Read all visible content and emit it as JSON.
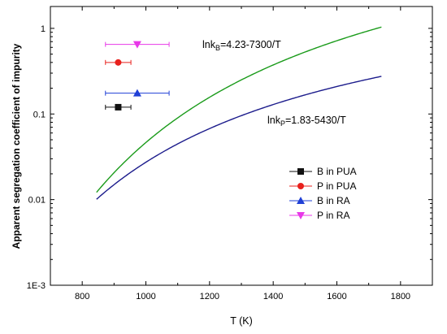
{
  "chart_data": {
    "type": "scatter",
    "title": "",
    "xlabel": "T (K)",
    "ylabel": "Apparent segregation coefficient of impurity",
    "xlim": [
      700,
      1900
    ],
    "ylim": [
      0.001,
      1.8
    ],
    "yscale": "log",
    "x_ticks": [
      "800",
      "1000",
      "1200",
      "1400",
      "1600",
      "1800"
    ],
    "y_ticks": [
      "1E-3",
      "0.01",
      "0.1",
      "1"
    ],
    "grid": false,
    "legend_position": "right",
    "curves": [
      {
        "name": "lnkB=4.23-7300/T",
        "color": "#1a9b1a",
        "a": 4.23,
        "b": 7300,
        "x_range": [
          845,
          1740
        ]
      },
      {
        "name": "lnkP=1.83-5430/T",
        "color": "#1c1c8c",
        "a": 1.83,
        "b": 5430,
        "x_range": [
          845,
          1740
        ]
      }
    ],
    "annotations": [
      {
        "main": "lnk",
        "sub": "B",
        "rest": "=4.23-7300/T"
      },
      {
        "main": "lnk",
        "sub": "P",
        "rest": "=1.83-5430/T"
      }
    ],
    "series": [
      {
        "name": "B in PUA",
        "marker": "square",
        "color": "#111111",
        "x": 913,
        "y": 0.12,
        "xerr": [
          873,
          953
        ]
      },
      {
        "name": "P in PUA",
        "marker": "circle",
        "color": "#e8201c",
        "x": 913,
        "y": 0.4,
        "xerr": [
          873,
          953
        ]
      },
      {
        "name": "B in RA",
        "marker": "triangle-up",
        "color": "#1f3fd6",
        "x": 973,
        "y": 0.175,
        "xerr": [
          873,
          1073
        ]
      },
      {
        "name": "P in RA",
        "marker": "triangle-down",
        "color": "#e838e8",
        "x": 973,
        "y": 0.65,
        "xerr": [
          873,
          1073
        ]
      }
    ]
  }
}
